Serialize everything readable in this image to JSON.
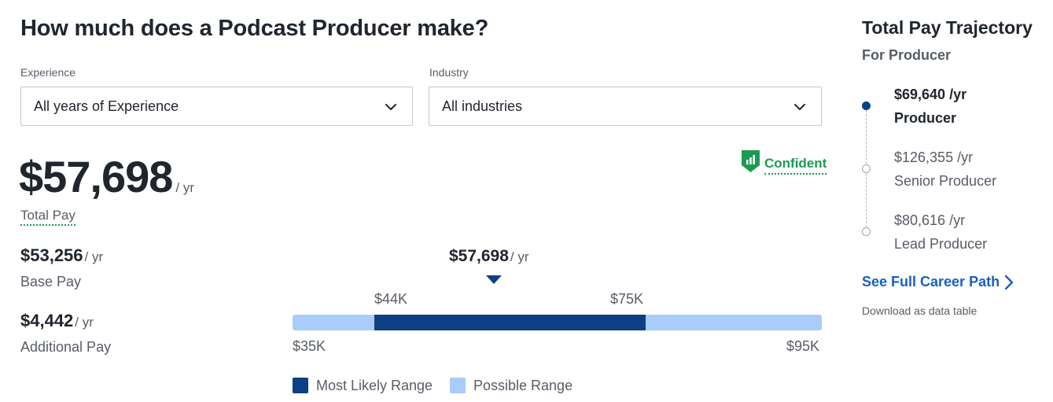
{
  "main": {
    "title": "How much does a Podcast Producer make?",
    "filters": {
      "experience_label": "Experience",
      "experience_value": "All years of Experience",
      "industry_label": "Industry",
      "industry_value": "All industries"
    },
    "total_pay": {
      "amount": "$57,698",
      "per": "/ yr",
      "label": "Total Pay"
    },
    "confidence": "Confident",
    "base_pay": {
      "amount": "$53,256",
      "per": "/ yr",
      "label": "Base Pay"
    },
    "additional_pay": {
      "amount": "$4,442",
      "per": "/ yr",
      "label": "Additional Pay"
    }
  },
  "range_chart": {
    "median": {
      "amount": "$57,698",
      "per": "/ yr",
      "value": 57698
    },
    "likely_low_label": "$44K",
    "likely_high_label": "$75K",
    "possible_low_label": "$35K",
    "possible_high_label": "$95K",
    "possible_range": [
      35000,
      95000
    ],
    "likely_range": [
      44000,
      75000
    ],
    "legend": {
      "likely": "Most Likely Range",
      "possible": "Possible Range"
    },
    "colors": {
      "likely": "#0d3f84",
      "possible": "#a9cdf8"
    }
  },
  "trajectory": {
    "title": "Total Pay Trajectory",
    "subtitle": "For Producer",
    "items": [
      {
        "pay": "$69,640 /yr",
        "role": "Producer",
        "active": true
      },
      {
        "pay": "$126,355 /yr",
        "role": "Senior Producer",
        "active": false
      },
      {
        "pay": "$80,616 /yr",
        "role": "Lead Producer",
        "active": false
      }
    ],
    "link": "See Full Career Path",
    "download": "Download as data table"
  },
  "icons": {
    "select_chevron": "chevron-down-icon",
    "confidence": "confidence-shield-icon",
    "link_arrow": "chevron-right-icon"
  }
}
